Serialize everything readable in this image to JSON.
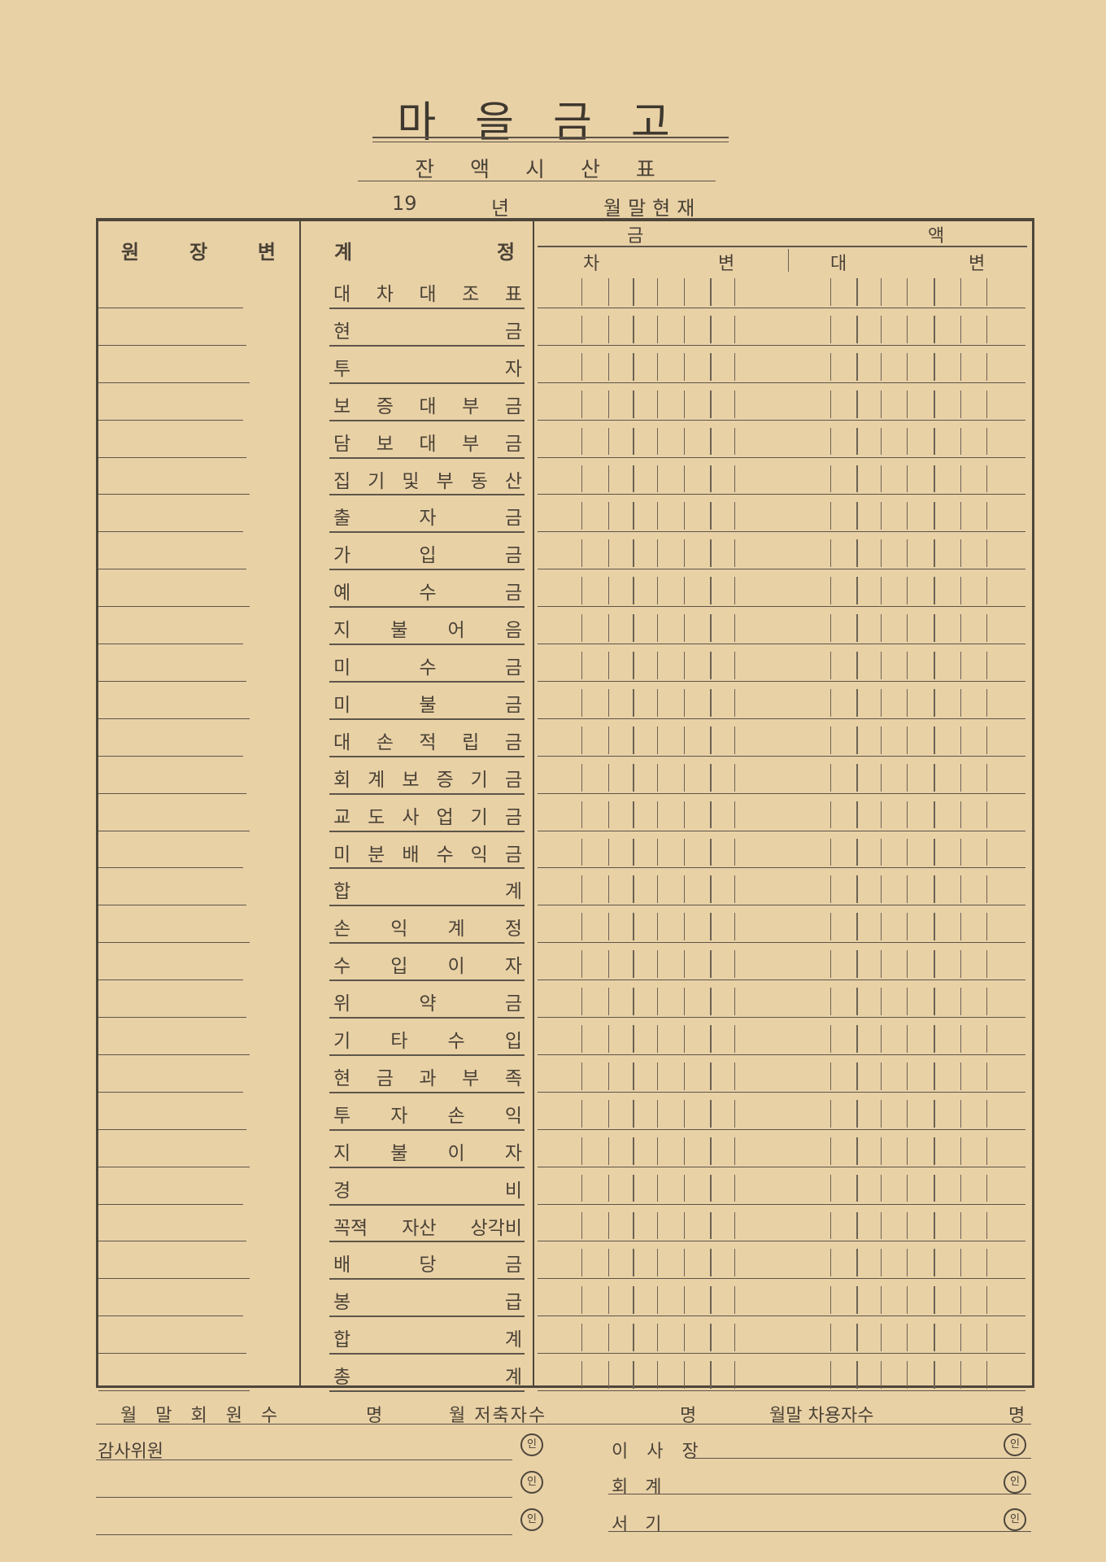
{
  "document": {
    "title": "마을금고",
    "subtitle": "잔액시산표",
    "date_line": {
      "year_prefix": "19",
      "year_label": "년",
      "month_label": "월말현재"
    }
  },
  "table": {
    "headers": {
      "ledger": "원 장 변",
      "account_left": "계",
      "account_right": "정",
      "amount_left": "금",
      "amount_right": "액",
      "debit_left": "차",
      "debit_right": "변",
      "credit_left": "대",
      "credit_right": "변"
    },
    "rows": [
      "대 차 대 조 표",
      "현 금",
      "투 자",
      "보 증 대 부 금",
      "담 보 대 부 금",
      "집 기 및 부 동 산",
      "출 자 금",
      "가 입 금",
      "예 수 금",
      "지 불 어 음",
      "미 수 금",
      "미 불 금",
      "대 손 적 립 금",
      "회 계 보 증 기 금",
      "교 도 사 업 기 금",
      "미 분 배 수 익 금",
      "합 계",
      "손 익 계 정",
      "수 입 이 자",
      "위 약 금",
      "기 타 수 입",
      "현 금 과 부 족",
      "투 자 손 익",
      "지 불 이 자",
      "경 비",
      "꼭젹 자산 상각비",
      "배 당 금",
      "봉 급",
      "합 계",
      "총 계"
    ]
  },
  "footer": {
    "members": "월 말 회 원 수",
    "members_unit": "명",
    "savers": "월 저축자수",
    "savers_unit": "명",
    "borrowers": "월말 차용자수",
    "borrowers_unit": "명",
    "auditor": "감사위원",
    "chairman": "이 사 장",
    "accountant": "회   계",
    "secretary": "서   기",
    "seal": "인"
  }
}
